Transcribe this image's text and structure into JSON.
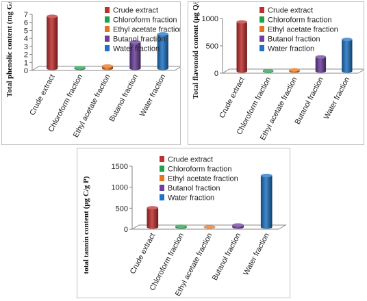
{
  "chart_data": [
    {
      "type": "bar",
      "ylabel": "Total phenolic content (mg GA/g P)",
      "ylim": [
        0,
        7
      ],
      "yticks": [
        0,
        1,
        2,
        3,
        4,
        5,
        6,
        7
      ],
      "categories": [
        "Crude extract",
        "Chloroform fraction",
        "Ethyl acetate fraction",
        "Butanol fraction",
        "Water fraction"
      ],
      "values": [
        6.5,
        0.1,
        0.3,
        3.3,
        4.3
      ],
      "colors": [
        "#c0302f",
        "#1fa04a",
        "#e8731e",
        "#6b3f9a",
        "#1f73c2"
      ],
      "legend": [
        "Crude extract",
        "Chloroform fraction",
        "Ethyl acetate fraction",
        "Butanol fraction",
        "Water fraction"
      ],
      "legend_position": "top-right"
    },
    {
      "type": "bar",
      "ylabel": "Total flavonoid content (µg Q/g P)",
      "ylim": [
        0,
        1000
      ],
      "yticks": [
        0,
        500,
        1000
      ],
      "categories": [
        "Crude extract",
        "Chloroform fraction",
        "Ethyl acetate fraction",
        "Butanol fraction",
        "Water fraction"
      ],
      "values": [
        900,
        10,
        25,
        260,
        580
      ],
      "colors": [
        "#c0302f",
        "#1fa04a",
        "#e8731e",
        "#6b3f9a",
        "#1f73c2"
      ],
      "legend": [
        "Crude extract",
        "Chloroform fraction",
        "Ethyl acetate fraction",
        "Butanol fraction",
        "Water fraction"
      ],
      "legend_position": "top-right"
    },
    {
      "type": "bar",
      "ylabel": "total tannin content (µg C/g P)",
      "ylim": [
        0,
        1500
      ],
      "yticks": [
        0,
        500,
        1000,
        1500
      ],
      "categories": [
        "Crude extract",
        "Chloroform fraction",
        "Ethyl acetate fraction",
        "Butanol fraction",
        "Water fraction"
      ],
      "values": [
        460,
        20,
        5,
        50,
        1230
      ],
      "colors": [
        "#c0302f",
        "#1fa04a",
        "#e8731e",
        "#6b3f9a",
        "#1f73c2"
      ],
      "legend": [
        "Crude extract",
        "Chloroform fraction",
        "Ethyl acetate fraction",
        "Butanol fraction",
        "Water fraction"
      ],
      "legend_position": "top-right"
    }
  ]
}
